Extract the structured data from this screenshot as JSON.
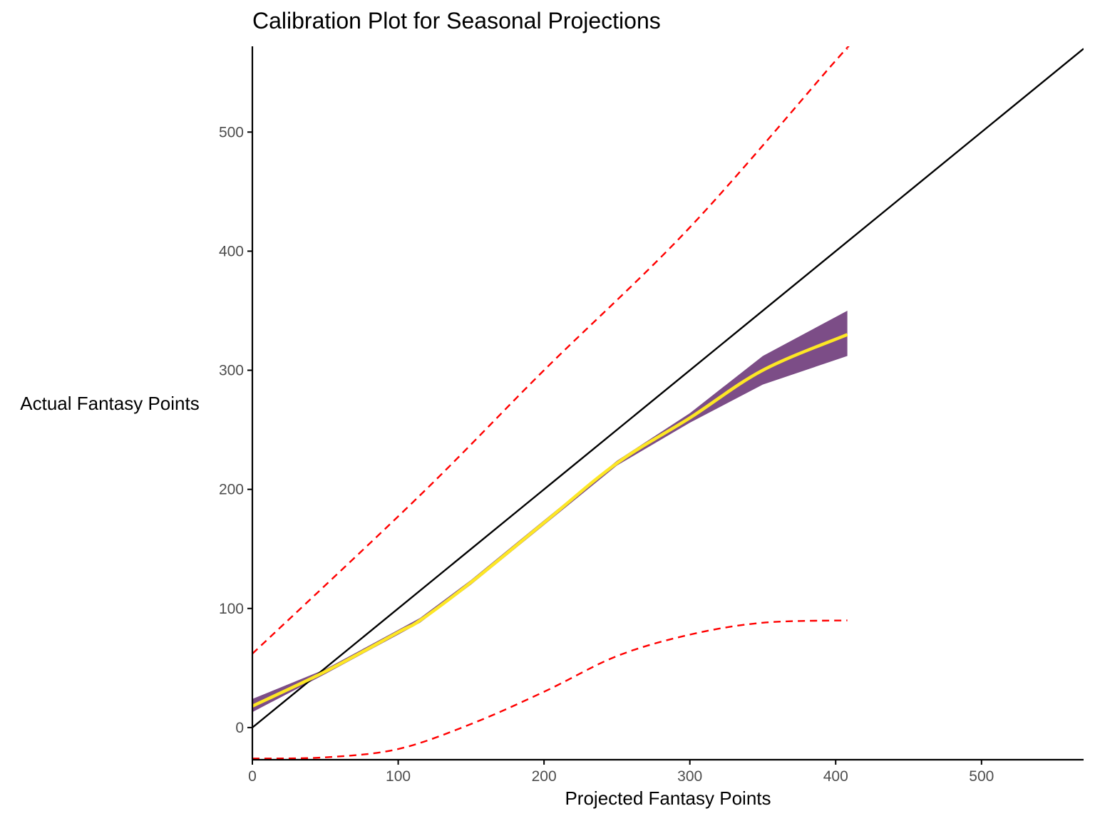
{
  "chart_data": {
    "type": "line",
    "title": "Calibration Plot for Seasonal Projections",
    "xlabel": "Projected Fantasy Points",
    "ylabel": "Actual Fantasy Points",
    "xlim": [
      0,
      570
    ],
    "ylim": [
      -27,
      572
    ],
    "x_ticks": [
      0,
      100,
      200,
      300,
      400,
      500
    ],
    "y_ticks": [
      0,
      100,
      200,
      300,
      400,
      500
    ],
    "grid": false,
    "colors": {
      "reference_line": "#000000",
      "smooth_line": "#fde725",
      "ribbon": "#440154",
      "ribbon_opacity": 0.7,
      "bounds": "#ff0000",
      "axis": "#000000",
      "tick_text": "#4d4d4d"
    },
    "series": [
      {
        "style": "solid-black",
        "x": [
          0,
          570
        ],
        "y": [
          0,
          570
        ]
      },
      {
        "style": "dashed-red-upper",
        "x": [
          0,
          115,
          200,
          300,
          400,
          408
        ],
        "y": [
          62,
          195,
          300,
          420,
          560,
          570
        ]
      },
      {
        "style": "dashed-red-lower",
        "x": [
          0,
          50,
          100,
          150,
          200,
          250,
          300,
          350,
          408
        ],
        "y": [
          -26,
          -25,
          -18,
          3,
          30,
          60,
          78,
          88,
          90
        ]
      },
      {
        "style": "smooth-yellow-with-ribbon",
        "x": [
          0,
          50,
          100,
          115,
          150,
          200,
          250,
          300,
          350,
          408
        ],
        "y": [
          18,
          47,
          80,
          90,
          122,
          172,
          222,
          260,
          300,
          330
        ],
        "lower": [
          13,
          45,
          78,
          88,
          120,
          170,
          220,
          256,
          288,
          312
        ],
        "upper": [
          24,
          49,
          82,
          92,
          124,
          174,
          224,
          264,
          312,
          350
        ]
      }
    ]
  }
}
